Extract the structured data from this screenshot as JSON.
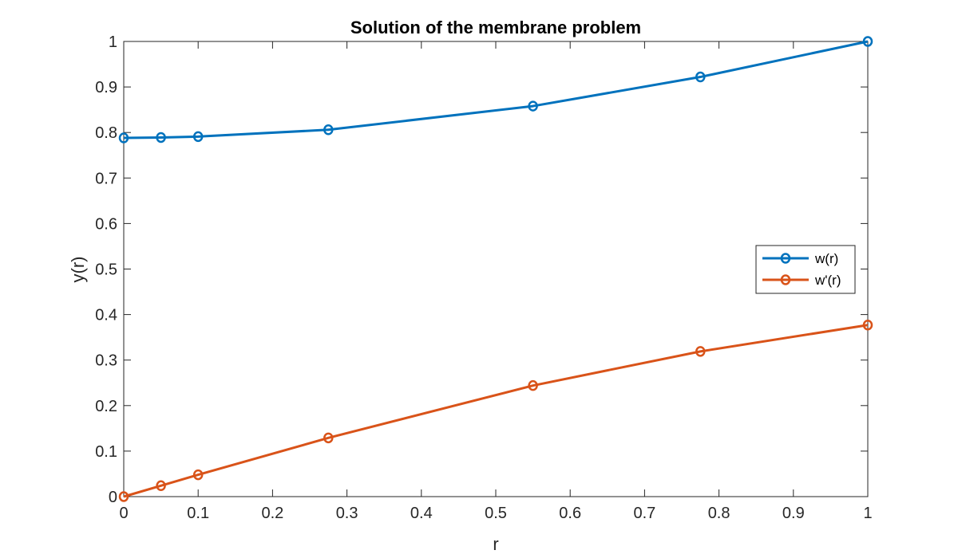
{
  "chart_data": {
    "type": "line",
    "title": "Solution of the membrane problem",
    "xlabel": "r",
    "ylabel": "y(r)",
    "xlim": [
      0,
      1
    ],
    "ylim": [
      0,
      1
    ],
    "xticks": [
      "0",
      "0.1",
      "0.2",
      "0.3",
      "0.4",
      "0.5",
      "0.6",
      "0.7",
      "0.8",
      "0.9",
      "1"
    ],
    "yticks": [
      "0",
      "0.1",
      "0.2",
      "0.3",
      "0.4",
      "0.5",
      "0.6",
      "0.7",
      "0.8",
      "0.9",
      "1"
    ],
    "grid": false,
    "legend_position": "east",
    "x": [
      0,
      0.05,
      0.1,
      0.275,
      0.55,
      0.775,
      1
    ],
    "series": [
      {
        "name": "w(r)",
        "color": "#0072BD",
        "marker": "o",
        "values": [
          0.788,
          0.789,
          0.791,
          0.806,
          0.858,
          0.922,
          1.0
        ]
      },
      {
        "name": "w'(r)",
        "color": "#D95319",
        "marker": "o",
        "values": [
          0.0,
          0.024,
          0.048,
          0.129,
          0.244,
          0.319,
          0.377
        ]
      }
    ]
  }
}
